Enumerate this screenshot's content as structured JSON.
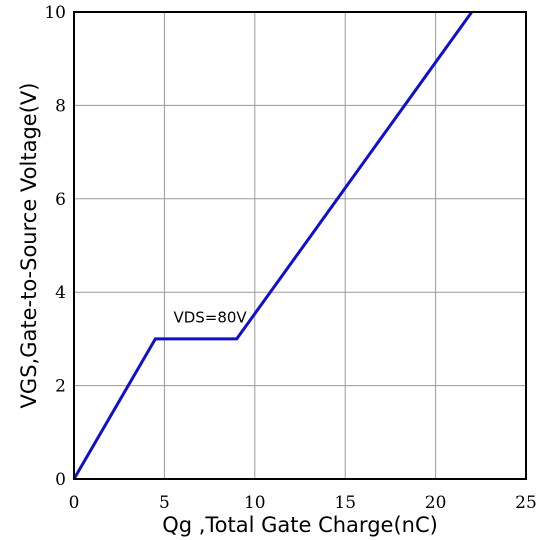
{
  "chart_data": {
    "type": "line",
    "xlabel": "Qg ,Total Gate Charge(nC)",
    "ylabel": "VGS,Gate-to-Source Voltage(V)",
    "xlim": [
      0,
      25
    ],
    "ylim": [
      0,
      10
    ],
    "xticks": [
      0,
      5,
      10,
      15,
      20,
      25
    ],
    "yticks": [
      0,
      2,
      4,
      6,
      8,
      10
    ],
    "grid": true,
    "series": [
      {
        "color": "#1010cc",
        "x": [
          0,
          4.5,
          9,
          22
        ],
        "y": [
          0,
          3,
          3,
          10
        ]
      }
    ],
    "annotations": [
      {
        "text": "VDS=80V",
        "x": 5.5,
        "y": 3.35
      }
    ]
  }
}
